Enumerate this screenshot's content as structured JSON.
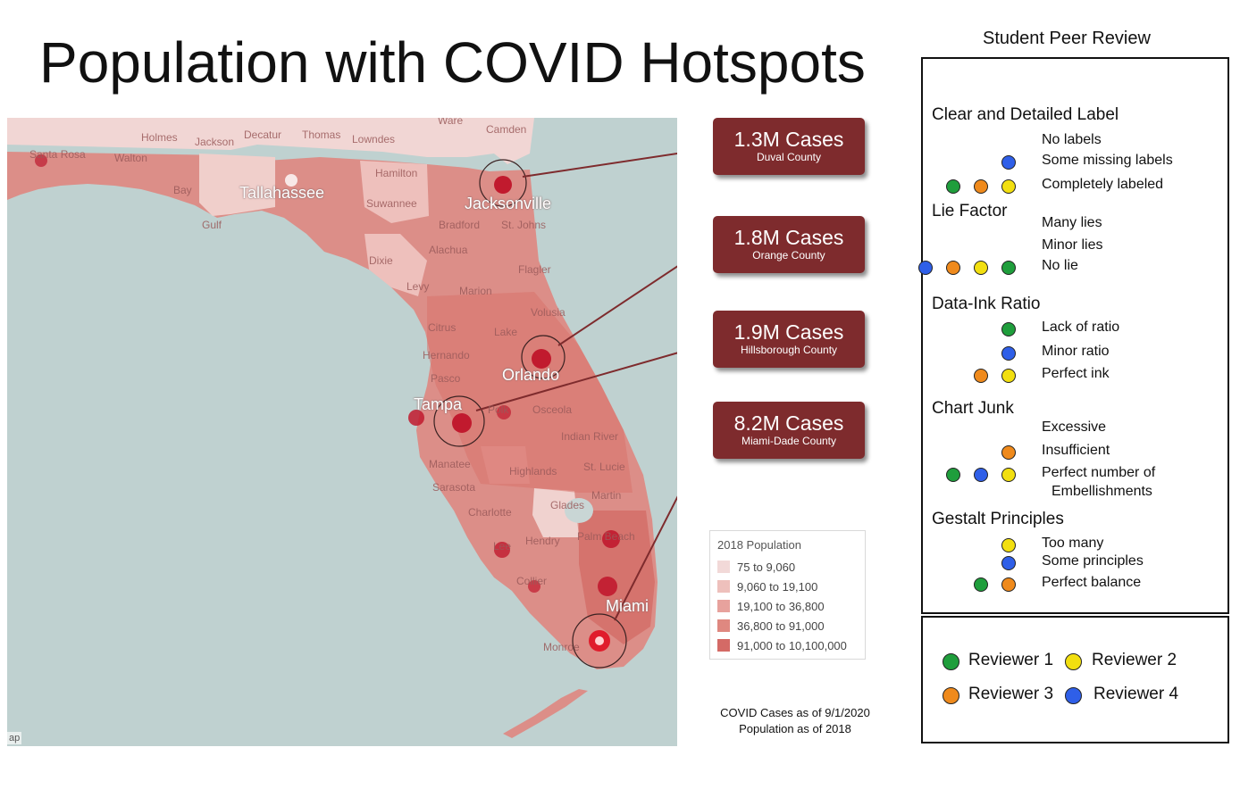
{
  "title": "Population with COVID Hotspots",
  "colors": {
    "reviewer1": "#1f9e3c",
    "reviewer2": "#f2df10",
    "reviewer3": "#ef8a1c",
    "reviewer4": "#2f5fe8",
    "callout_bg": "#7e2b2d",
    "legend": [
      "#f2d9d8",
      "#eec0bc",
      "#e7a29d",
      "#df8880",
      "#d46a66"
    ]
  },
  "map": {
    "places": [
      "Ware",
      "Camden",
      "Holmes",
      "Jackson",
      "Decatur",
      "Thomas",
      "Lowndes",
      "Santa Rosa",
      "Walton",
      "Bay",
      "Hamilton",
      "Gulf",
      "Suwannee",
      "Bradford",
      "St. Johns",
      "Dixie",
      "Alachua",
      "Flagler",
      "Levy",
      "Marion",
      "Volusia",
      "Citrus",
      "Lake",
      "Hernando",
      "Pasco",
      "Polk",
      "Osceola",
      "Indian River",
      "Manatee",
      "Highlands",
      "St. Lucie",
      "Sarasota",
      "Martin",
      "Charlotte",
      "Glades",
      "Lee",
      "Hendry",
      "Palm Beach",
      "Collier",
      "Monroe"
    ],
    "cities": [
      "Tallahassee",
      "Jacksonville",
      "Orlando",
      "Tampa",
      "Miami"
    ],
    "attribution": "ap"
  },
  "callouts": [
    {
      "cases": "1.3M Cases",
      "county": "Duval County"
    },
    {
      "cases": "1.8M Cases",
      "county": "Orange County"
    },
    {
      "cases": "1.9M Cases",
      "county": "Hillsborough County"
    },
    {
      "cases": "8.2M Cases",
      "county": "Miami-Dade County"
    }
  ],
  "legend": {
    "title": "2018 Population",
    "items": [
      "75 to 9,060",
      "9,060 to 19,100",
      "19,100 to 36,800",
      "36,800 to 91,000",
      "91,000 to 10,100,000"
    ]
  },
  "notes": {
    "line1": "COVID Cases as of 9/1/2020",
    "line2": "Population as of 2018"
  },
  "review": {
    "title": "Student Peer Review",
    "sections": [
      {
        "name": "Clear and Detailed Label",
        "options": [
          {
            "label": "No labels",
            "votes": []
          },
          {
            "label": "Some missing labels",
            "votes": [
              "reviewer4"
            ]
          },
          {
            "label": "Completely labeled",
            "votes": [
              "reviewer1",
              "reviewer3",
              "reviewer2"
            ]
          }
        ]
      },
      {
        "name": "Lie Factor",
        "options": [
          {
            "label": "Many lies",
            "votes": []
          },
          {
            "label": "Minor lies",
            "votes": []
          },
          {
            "label": "No lie",
            "votes": [
              "reviewer4",
              "reviewer3",
              "reviewer2",
              "reviewer1"
            ]
          }
        ]
      },
      {
        "name": "Data-Ink Ratio",
        "options": [
          {
            "label": "Lack of ratio",
            "votes": [
              "reviewer1"
            ]
          },
          {
            "label": "Minor ratio",
            "votes": [
              "reviewer4"
            ]
          },
          {
            "label": "Perfect ink",
            "votes": [
              "reviewer3",
              "reviewer2"
            ]
          }
        ]
      },
      {
        "name": "Chart Junk",
        "options": [
          {
            "label": "Excessive",
            "votes": []
          },
          {
            "label": "Insufficient",
            "votes": [
              "reviewer3"
            ]
          },
          {
            "label": "Perfect number of",
            "label2": "Embellishments",
            "votes": [
              "reviewer1",
              "reviewer4",
              "reviewer2"
            ]
          }
        ]
      },
      {
        "name": "Gestalt Principles",
        "options": [
          {
            "label": "Too many",
            "votes": [
              "reviewer2"
            ]
          },
          {
            "label": "Some principles",
            "votes": [
              "reviewer4"
            ]
          },
          {
            "label": "Perfect balance",
            "votes": [
              "reviewer1",
              "reviewer3"
            ]
          }
        ]
      }
    ],
    "key": [
      {
        "id": "reviewer1",
        "label": "Reviewer 1"
      },
      {
        "id": "reviewer2",
        "label": "Reviewer 2"
      },
      {
        "id": "reviewer3",
        "label": "Reviewer 3"
      },
      {
        "id": "reviewer4",
        "label": "Reviewer 4"
      }
    ]
  }
}
